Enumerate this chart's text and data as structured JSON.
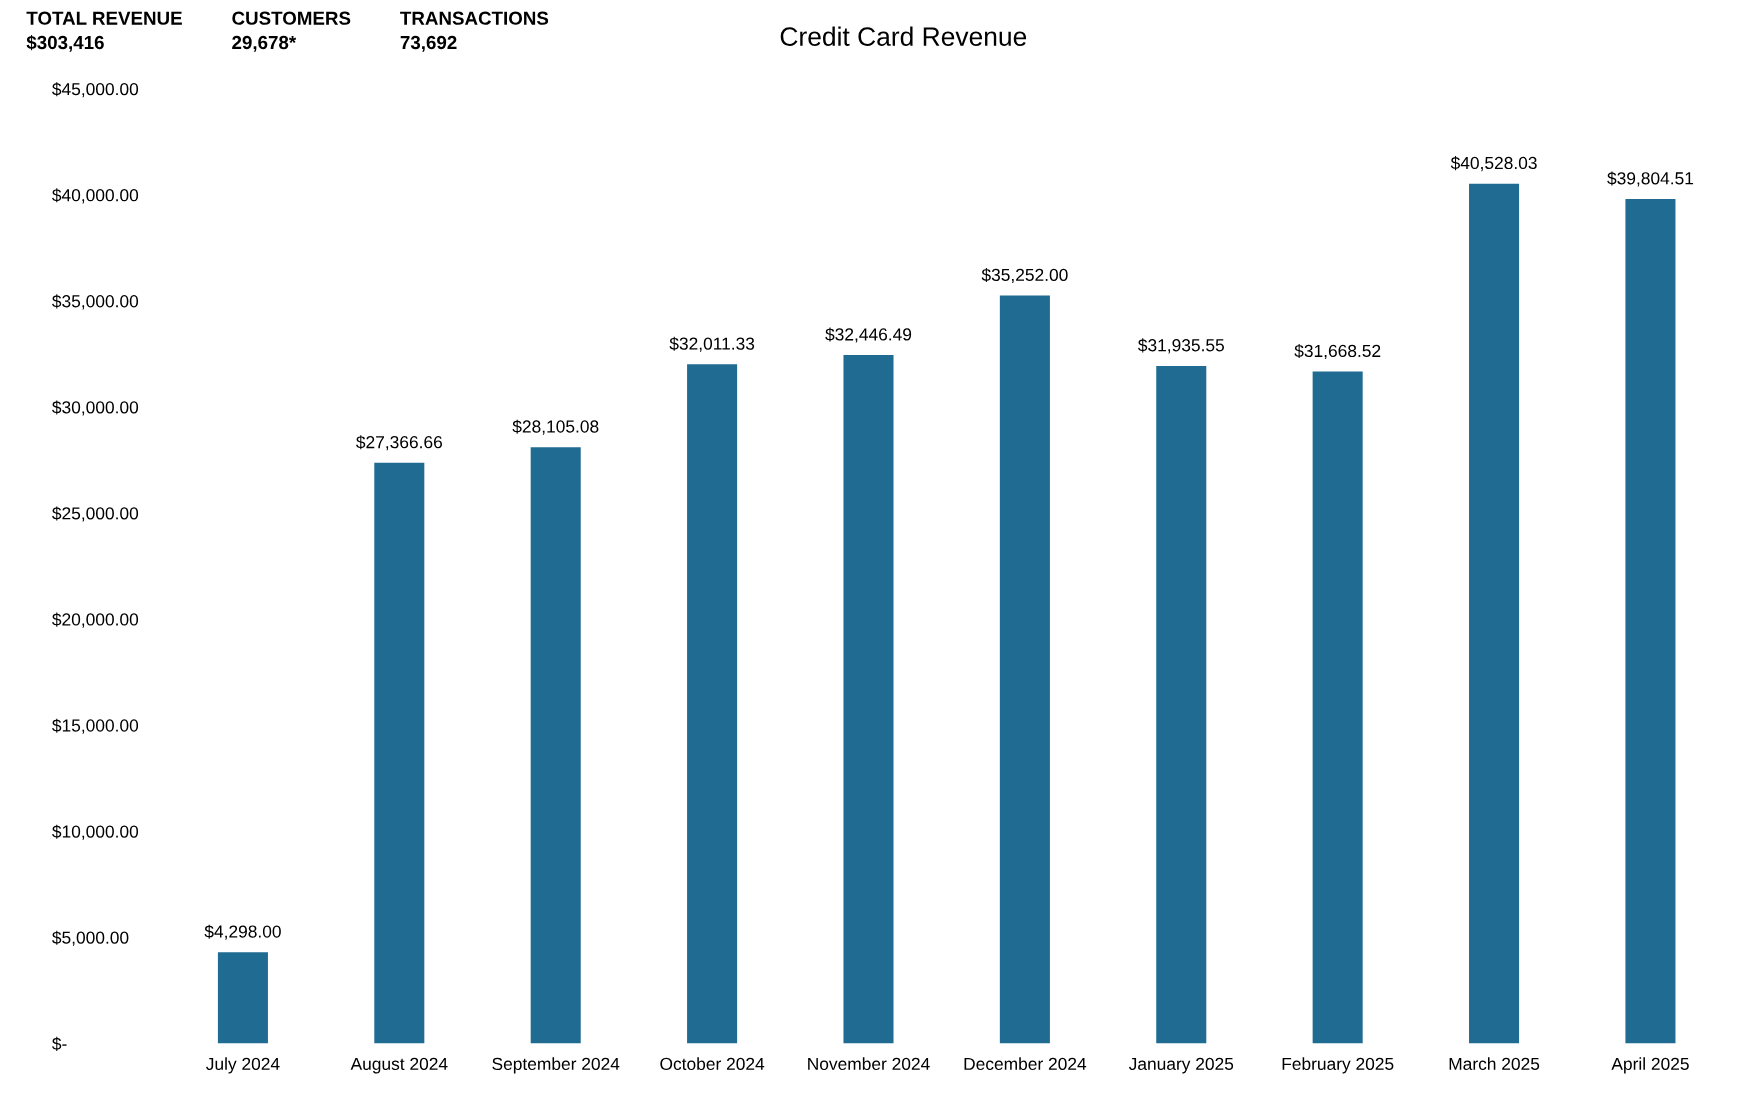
{
  "chart_data": {
    "type": "bar",
    "title": "Credit Card Revenue",
    "annotations": [
      "TOTAL REVENUE\n$303,416",
      "CUSTOMERS\n29,678*",
      "TRANSACTIONS\n73,692"
    ],
    "categories": [
      "July 2024",
      "August 2024",
      "September 2024",
      "October 2024",
      "November 2024",
      "December 2024",
      "January 2025",
      "February 2025",
      "March 2025",
      "April 2025"
    ],
    "values": [
      4298.0,
      27366.66,
      28105.08,
      32011.33,
      32446.49,
      35252.0,
      31935.55,
      31668.52,
      40528.03,
      39804.51
    ],
    "value_labels": [
      "$4,298.00",
      "$27,366.66",
      "$28,105.08",
      "$32,011.33",
      "$32,446.49",
      "$35,252.00",
      "$31,935.55",
      "$31,668.52",
      "$40,528.03",
      "$39,804.51"
    ],
    "color": "#1f6b92",
    "ylim": [
      0,
      45000
    ],
    "yticks": [
      {
        "value": 0,
        "label": "$-"
      },
      {
        "value": 5000,
        "label": "$5,000.00"
      },
      {
        "value": 10000,
        "label": "$10,000.00"
      },
      {
        "value": 15000,
        "label": "$15,000.00"
      },
      {
        "value": 20000,
        "label": "$20,000.00"
      },
      {
        "value": 25000,
        "label": "$25,000.00"
      },
      {
        "value": 30000,
        "label": "$30,000.00"
      },
      {
        "value": 35000,
        "label": "$35,000.00"
      },
      {
        "value": 40000,
        "label": "$40,000.00"
      },
      {
        "value": 45000,
        "label": "$45,000.00"
      }
    ],
    "grid": false,
    "legend": false
  }
}
